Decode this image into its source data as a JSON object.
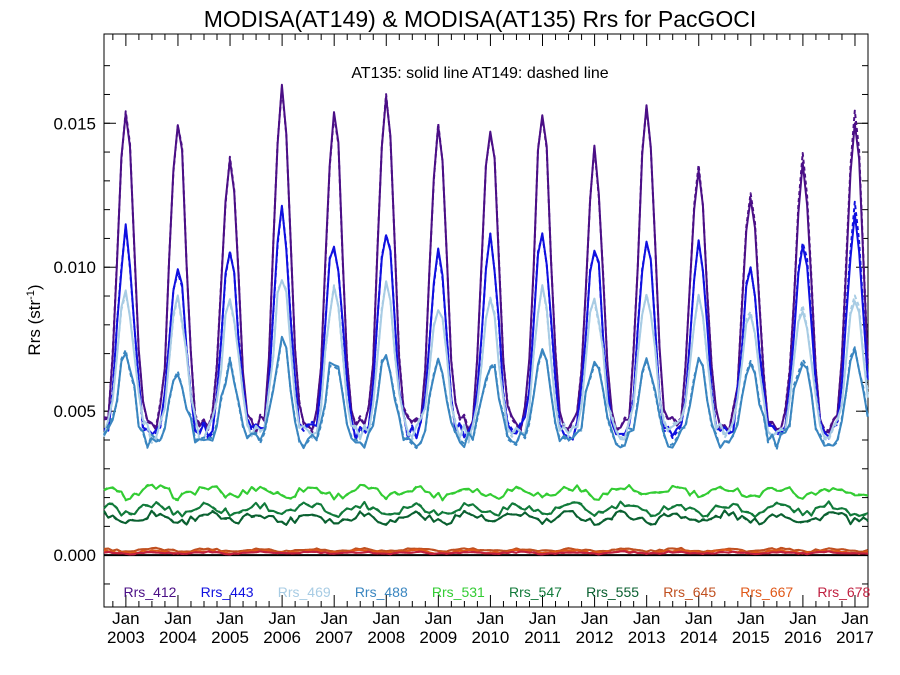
{
  "chart_data": {
    "type": "line",
    "title": "MODISA(AT149) & MODISA(AT135)  Rrs for PacGOCI",
    "ylabel": "Rrs (str",
    "ylabel_sup": "-1",
    "annotation": "AT135: solid line   AT149: dashed line",
    "ylim": [
      -0.0018,
      0.0181
    ],
    "xlim": [
      "2002-08",
      "2017-03"
    ],
    "grid": false,
    "legend_position": "bottom",
    "y_ticks": [
      "0.000",
      "0.005",
      "0.010",
      "0.015"
    ],
    "x_ticks": [
      {
        "month": "Jan",
        "year": "2003"
      },
      {
        "month": "Jan",
        "year": "2004"
      },
      {
        "month": "Jan",
        "year": "2005"
      },
      {
        "month": "Jan",
        "year": "2006"
      },
      {
        "month": "Jan",
        "year": "2007"
      },
      {
        "month": "Jan",
        "year": "2008"
      },
      {
        "month": "Jan",
        "year": "2009"
      },
      {
        "month": "Jan",
        "year": "2010"
      },
      {
        "month": "Jan",
        "year": "2011"
      },
      {
        "month": "Jan",
        "year": "2012"
      },
      {
        "month": "Jan",
        "year": "2013"
      },
      {
        "month": "Jan",
        "year": "2014"
      },
      {
        "month": "Jan",
        "year": "2015"
      },
      {
        "month": "Jan",
        "year": "2016"
      },
      {
        "month": "Jan",
        "year": "2017"
      }
    ],
    "line_styles": {
      "AT135": "solid",
      "AT149": "dashed"
    },
    "series": [
      {
        "name": "Rrs_412",
        "color": "#4b0f86",
        "winter_peak": [
          0.0153,
          0.0152,
          0.014,
          0.0163,
          0.0155,
          0.0158,
          0.0148,
          0.015,
          0.0155,
          0.014,
          0.0157,
          0.0135,
          0.0125,
          0.0135,
          0.015
        ],
        "summer_low": 0.0045,
        "spring_value": 0.0105
      },
      {
        "name": "Rrs_443",
        "color": "#1010e0",
        "winter_peak": [
          0.0112,
          0.0101,
          0.0105,
          0.0119,
          0.011,
          0.0113,
          0.0105,
          0.011,
          0.0112,
          0.0108,
          0.011,
          0.0108,
          0.01,
          0.0107,
          0.0116
        ],
        "summer_low": 0.0043,
        "spring_value": 0.008
      },
      {
        "name": "Rrs_469",
        "color": "#a8cce4",
        "winter_peak": [
          0.0091,
          0.0088,
          0.0089,
          0.0098,
          0.0093,
          0.0093,
          0.0088,
          0.009,
          0.0093,
          0.009,
          0.0091,
          0.0089,
          0.0085,
          0.0087,
          0.0091
        ],
        "summer_low": 0.0043,
        "spring_value": 0.0068
      },
      {
        "name": "Rrs_488",
        "color": "#3a86c0",
        "winter_peak": [
          0.007,
          0.0064,
          0.0066,
          0.0074,
          0.0069,
          0.007,
          0.0067,
          0.0068,
          0.0069,
          0.0067,
          0.0068,
          0.0067,
          0.0066,
          0.0069,
          0.0071
        ],
        "summer_low": 0.004,
        "spring_value": 0.0055
      },
      {
        "name": "Rrs_531",
        "color": "#33cc33",
        "mean": 0.0022,
        "amplitude": 0.00015
      },
      {
        "name": "Rrs_547",
        "color": "#117a3a",
        "mean": 0.0016,
        "amplitude": 0.00015
      },
      {
        "name": "Rrs_555",
        "color": "#0a6030",
        "mean": 0.0013,
        "amplitude": 0.00015
      },
      {
        "name": "Rrs_645",
        "color": "#c05020",
        "mean": 0.00018,
        "amplitude": 4e-05
      },
      {
        "name": "Rrs_667",
        "color": "#e05818",
        "mean": 0.00012,
        "amplitude": 4e-05
      },
      {
        "name": "Rrs_678",
        "color": "#c02040",
        "mean": 8e-05,
        "amplitude": 3e-05
      }
    ]
  }
}
